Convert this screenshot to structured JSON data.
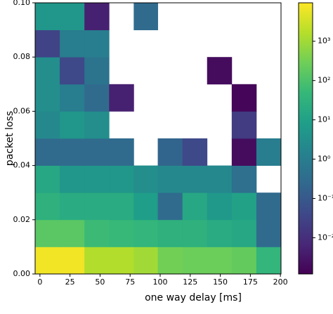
{
  "chart_data": {
    "type": "heatmap",
    "xlabel": "one way delay [ms]",
    "ylabel": "packet loss",
    "xbins": [
      -4,
      16.5,
      37,
      57.5,
      78,
      98,
      118.5,
      139,
      159.5,
      180,
      200.5
    ],
    "ybins": [
      0,
      0.01,
      0.02,
      0.03,
      0.04,
      0.05,
      0.06,
      0.07,
      0.08,
      0.09,
      0.1
    ],
    "values": [
      [
        7000,
        7000,
        1500,
        1500,
        1000,
        300,
        250,
        250,
        200,
        40
      ],
      [
        150,
        150,
        60,
        50,
        40,
        30,
        30,
        20,
        15,
        0.3
      ],
      [
        30,
        20,
        20,
        20,
        8,
        0.3,
        15,
        6,
        10,
        0.3
      ],
      [
        15,
        5,
        5,
        5,
        3,
        2,
        2,
        2,
        0.4,
        null
      ],
      [
        0.3,
        0.3,
        0.3,
        0.3,
        null,
        0.2,
        0.04,
        null,
        0.002,
        1
      ],
      [
        2,
        5,
        3,
        null,
        null,
        null,
        null,
        null,
        0.02,
        null
      ],
      [
        3,
        1,
        0.3,
        0.005,
        null,
        null,
        null,
        null,
        0.0015,
        null
      ],
      [
        3,
        0.04,
        0.5,
        null,
        null,
        null,
        null,
        0.002,
        null,
        null
      ],
      [
        0.03,
        1,
        1,
        null,
        null,
        null,
        null,
        null,
        null,
        null
      ],
      [
        5,
        5,
        0.005,
        null,
        0.3,
        null,
        null,
        null,
        null,
        null
      ]
    ],
    "xlim": [
      -4,
      200.5
    ],
    "ylim": [
      0,
      0.1
    ],
    "xticks": [
      0,
      25,
      50,
      75,
      100,
      125,
      150,
      175,
      200
    ],
    "yticks": [
      {
        "value": 0,
        "label": "0.00"
      },
      {
        "value": 0.02,
        "label": "0.02"
      },
      {
        "value": 0.04,
        "label": "0.04"
      },
      {
        "value": 0.06,
        "label": "0.06"
      },
      {
        "value": 0.08,
        "label": "0.08"
      },
      {
        "value": 0.1,
        "label": "0.10"
      }
    ],
    "colorbar": {
      "log": true,
      "clim": [
        0.0012,
        9500
      ],
      "ticks": [
        {
          "value": 0.01,
          "label": "10⁻²"
        },
        {
          "value": 0.1,
          "label": "10⁻¹"
        },
        {
          "value": 1,
          "label": "10⁰"
        },
        {
          "value": 10,
          "label": "10¹"
        },
        {
          "value": 100,
          "label": "10²"
        },
        {
          "value": 1000,
          "label": "10³"
        }
      ]
    },
    "colormap": [
      "#440154",
      "#482878",
      "#3e4989",
      "#31688e",
      "#26828e",
      "#1f9e89",
      "#35b779",
      "#6ece58",
      "#b5de2b",
      "#fde725"
    ]
  }
}
